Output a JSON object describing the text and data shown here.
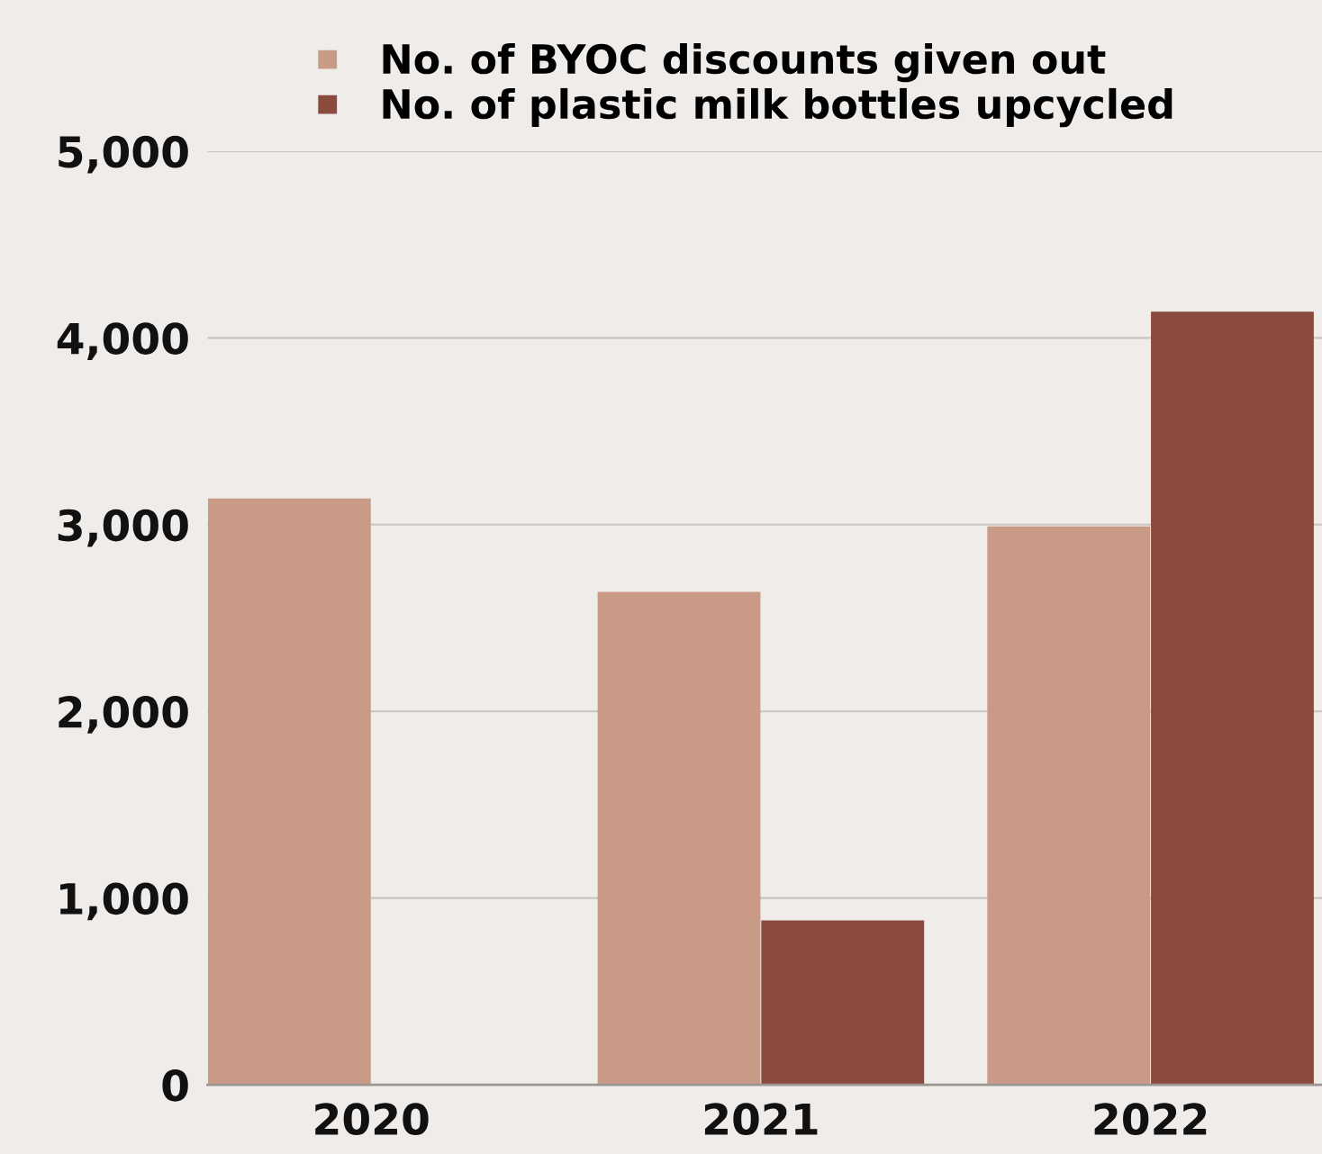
{
  "chart_data": {
    "type": "bar",
    "categories": [
      "2020",
      "2021",
      "2022"
    ],
    "series": [
      {
        "name": "No. of BYOC discounts given out",
        "color": "#c99b86",
        "values": [
          3140,
          2640,
          2990
        ]
      },
      {
        "name": "No. of plastic milk bottles upcycled",
        "color": "#8a4b3d",
        "values": [
          null,
          880,
          4140
        ]
      }
    ],
    "ylim": [
      0,
      5000
    ],
    "yticks": [
      {
        "value": 0,
        "label": "0"
      },
      {
        "value": 1000,
        "label": "1,000"
      },
      {
        "value": 2000,
        "label": "2,000"
      },
      {
        "value": 3000,
        "label": "3,000"
      },
      {
        "value": 4000,
        "label": "4,000"
      },
      {
        "value": 5000,
        "label": "5,000"
      }
    ],
    "grid": "y",
    "legend": "top"
  }
}
